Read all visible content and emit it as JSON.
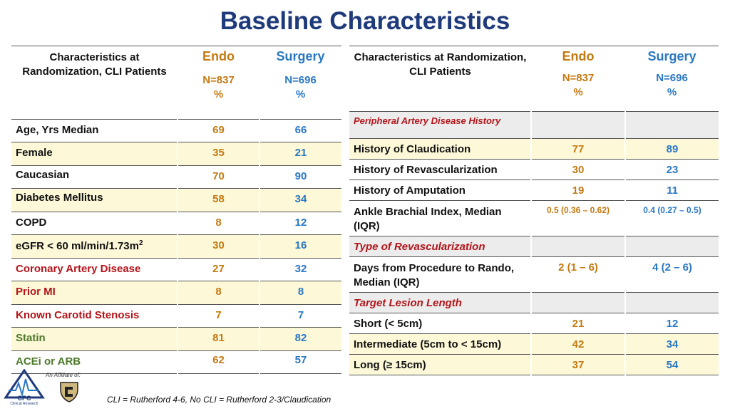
{
  "title": "Baseline Characteristics",
  "left_table": {
    "header": {
      "label": "Characteristics at Randomization, CLI Patients",
      "endo": "Endo",
      "surgery": "Surgery",
      "endo_n": "N=837",
      "endo_pct": "%",
      "surgery_n": "N=696",
      "surgery_pct": "%"
    },
    "rows": [
      {
        "label": "Age, Yrs Median",
        "endo": "69",
        "surgery": "66"
      },
      {
        "label": "Female",
        "endo": "35",
        "surgery": "21"
      },
      {
        "label": "Caucasian",
        "endo": "70",
        "surgery": "90"
      },
      {
        "label": "Diabetes Mellitus",
        "endo": "58",
        "surgery": "34"
      },
      {
        "label": "COPD",
        "endo": "8",
        "surgery": "12"
      },
      {
        "label": "eGFR < 60 ml/min/1.73m",
        "label_sup": "2",
        "endo": "30",
        "surgery": "16"
      },
      {
        "label": "Coronary Artery Disease",
        "endo": "27",
        "surgery": "32"
      },
      {
        "label": "Prior MI",
        "endo": "8",
        "surgery": "8"
      },
      {
        "label": "Known Carotid Stenosis",
        "endo": "7",
        "surgery": "7"
      },
      {
        "label": "Statin",
        "endo": "81",
        "surgery": "82"
      },
      {
        "label": "ACEi or ARB",
        "endo": "62",
        "surgery": "57"
      }
    ]
  },
  "right_table": {
    "header": {
      "label": "Characteristics at Randomization, CLI Patients",
      "endo": "Endo",
      "surgery": "Surgery",
      "endo_n": "N=837",
      "endo_pct": "%",
      "surgery_n": "N=696",
      "surgery_pct": "%"
    },
    "rows": [
      {
        "label": "Peripheral Artery Disease History",
        "endo": "",
        "surgery": ""
      },
      {
        "label": "History of Claudication",
        "endo": "77",
        "surgery": "89"
      },
      {
        "label": "History of Revascularization",
        "endo": "30",
        "surgery": "23"
      },
      {
        "label": "History of Amputation",
        "endo": "19",
        "surgery": "11"
      },
      {
        "label": "Ankle Brachial Index, Median (IQR)",
        "endo": "0.5 (0.36 – 0.62)",
        "surgery": "0.4 (0.27 – 0.5)"
      },
      {
        "label": "Type of Revascularization",
        "endo": "",
        "surgery": ""
      },
      {
        "label": "Days from Procedure to Rando, Median (IQR)",
        "endo": "2 (1 – 6)",
        "surgery": "4 (2 – 6)"
      },
      {
        "label": "Target Lesion Length",
        "endo": "",
        "surgery": ""
      },
      {
        "label": "Short (< 5cm)",
        "endo": "21",
        "surgery": "12"
      },
      {
        "label": "Intermediate (5cm to < 15cm)",
        "endo": "42",
        "surgery": "34"
      },
      {
        "label": "Long (≥ 15cm)",
        "endo": "37",
        "surgery": "54"
      }
    ]
  },
  "footer": {
    "affiliate": "An Affiliate of:",
    "logo_text": "CPC",
    "logo_subtext": "Clinical Research",
    "footnote": "CLI = Rutherford 4-6, No CLI = Rutherford 2-3/Claudication"
  },
  "colors": {
    "title": "#1f3a7a",
    "endo": "#c47a12",
    "surgery": "#2a77c4",
    "red_label": "#b3151b",
    "green_label": "#4d7a2a",
    "row_highlight": "#fdf8d8",
    "section_grey": "#ececec"
  }
}
